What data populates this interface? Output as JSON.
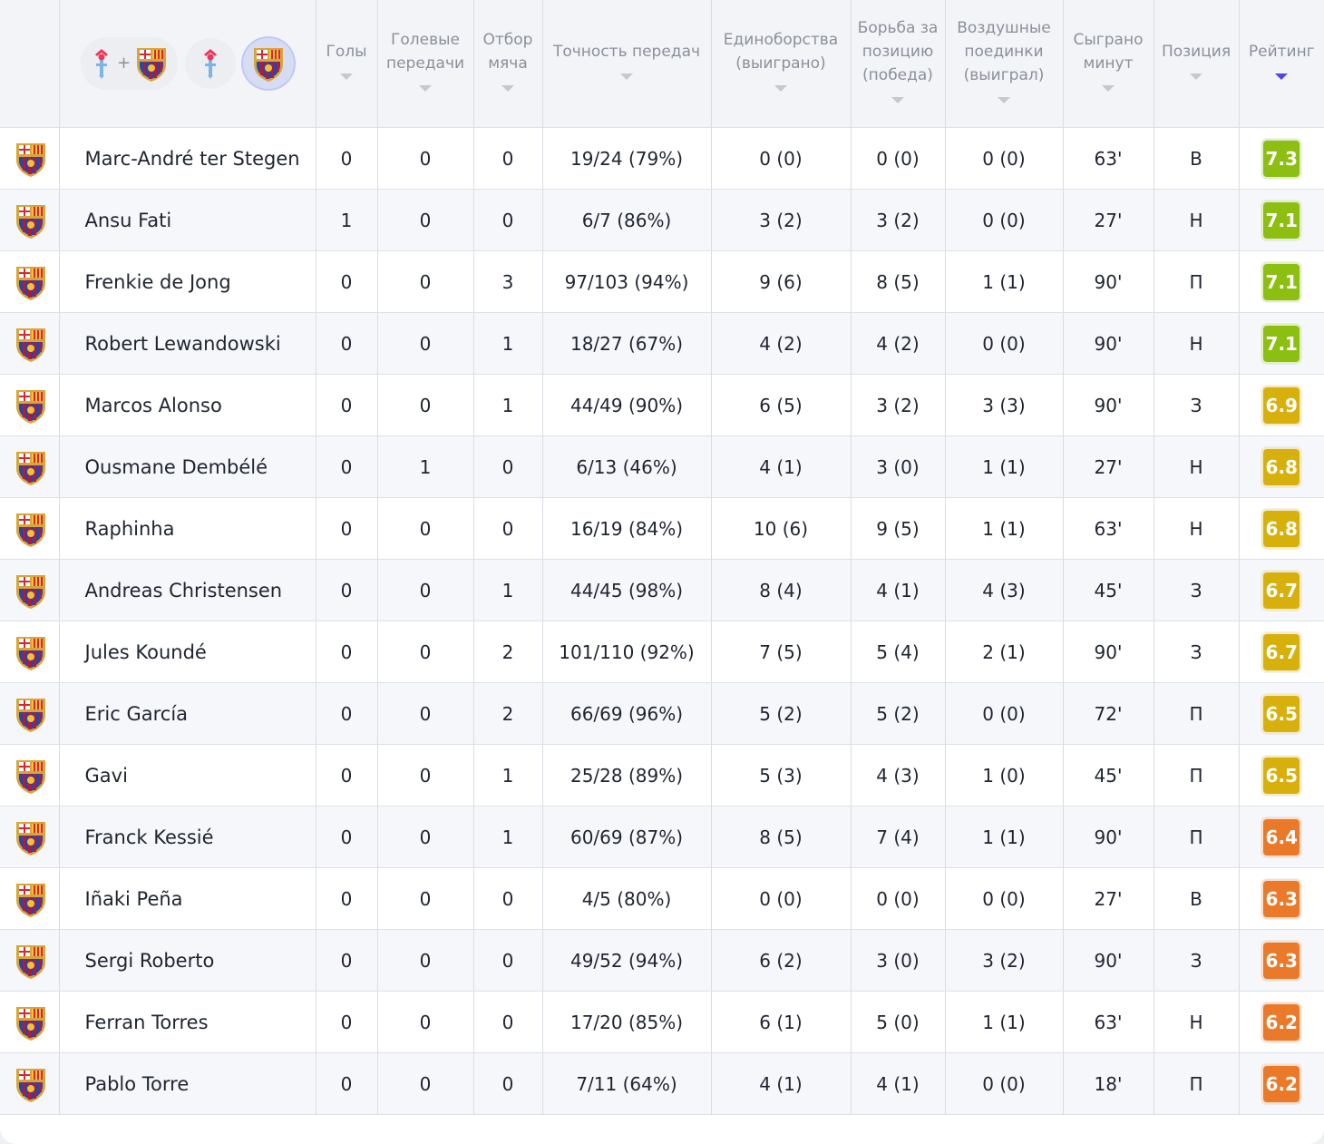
{
  "colors": {
    "rating_green": "#8cbf12",
    "rating_yellow": "#d8b00c",
    "rating_orange": "#ea7a2a",
    "sort_active": "#4a46e8"
  },
  "header": {
    "team_filter": {
      "options": [
        "celta-vigo-crest-icon + barcelona-crest-icon",
        "celta-vigo-crest-icon",
        "barcelona-crest-icon"
      ],
      "plus": "+",
      "selected": "barcelona-crest-icon"
    },
    "columns": [
      {
        "label": "Голы"
      },
      {
        "label": "Голевые передачи"
      },
      {
        "label": "Отбор мяча"
      },
      {
        "label": "Точность передач"
      },
      {
        "label": "Единоборства (выиграно)"
      },
      {
        "label": "Борьба за позицию (победа)"
      },
      {
        "label": "Воздушные поединки (выиграл)"
      },
      {
        "label": "Сыграно минут"
      },
      {
        "label": "Позиция"
      },
      {
        "label": "Рейтинг"
      }
    ]
  },
  "players": [
    {
      "name": "Marc-André ter Stegen",
      "goals": "0",
      "assists": "0",
      "tackles": "0",
      "passes": "19/24 (79%)",
      "duels": "0 (0)",
      "ground": "0 (0)",
      "aerial": "0 (0)",
      "minutes": "63'",
      "pos": "В",
      "rating": "7.3",
      "rating_color": "#8cbf12"
    },
    {
      "name": "Ansu Fati",
      "goals": "1",
      "assists": "0",
      "tackles": "0",
      "passes": "6/7 (86%)",
      "duels": "3 (2)",
      "ground": "3 (2)",
      "aerial": "0 (0)",
      "minutes": "27'",
      "pos": "Н",
      "rating": "7.1",
      "rating_color": "#8cbf12"
    },
    {
      "name": "Frenkie de Jong",
      "goals": "0",
      "assists": "0",
      "tackles": "3",
      "passes": "97/103 (94%)",
      "duels": "9 (6)",
      "ground": "8 (5)",
      "aerial": "1 (1)",
      "minutes": "90'",
      "pos": "П",
      "rating": "7.1",
      "rating_color": "#8cbf12"
    },
    {
      "name": "Robert Lewandowski",
      "goals": "0",
      "assists": "0",
      "tackles": "1",
      "passes": "18/27 (67%)",
      "duels": "4 (2)",
      "ground": "4 (2)",
      "aerial": "0 (0)",
      "minutes": "90'",
      "pos": "Н",
      "rating": "7.1",
      "rating_color": "#8cbf12"
    },
    {
      "name": "Marcos Alonso",
      "goals": "0",
      "assists": "0",
      "tackles": "1",
      "passes": "44/49 (90%)",
      "duels": "6 (5)",
      "ground": "3 (2)",
      "aerial": "3 (3)",
      "minutes": "90'",
      "pos": "З",
      "rating": "6.9",
      "rating_color": "#d8b00c"
    },
    {
      "name": "Ousmane Dembélé",
      "goals": "0",
      "assists": "1",
      "tackles": "0",
      "passes": "6/13 (46%)",
      "duels": "4 (1)",
      "ground": "3 (0)",
      "aerial": "1 (1)",
      "minutes": "27'",
      "pos": "Н",
      "rating": "6.8",
      "rating_color": "#d8b00c"
    },
    {
      "name": "Raphinha",
      "goals": "0",
      "assists": "0",
      "tackles": "0",
      "passes": "16/19 (84%)",
      "duels": "10 (6)",
      "ground": "9 (5)",
      "aerial": "1 (1)",
      "minutes": "63'",
      "pos": "Н",
      "rating": "6.8",
      "rating_color": "#d8b00c"
    },
    {
      "name": "Andreas Christensen",
      "goals": "0",
      "assists": "0",
      "tackles": "1",
      "passes": "44/45 (98%)",
      "duels": "8 (4)",
      "ground": "4 (1)",
      "aerial": "4 (3)",
      "minutes": "45'",
      "pos": "З",
      "rating": "6.7",
      "rating_color": "#d8b00c"
    },
    {
      "name": "Jules Koundé",
      "goals": "0",
      "assists": "0",
      "tackles": "2",
      "passes": "101/110 (92%)",
      "duels": "7 (5)",
      "ground": "5 (4)",
      "aerial": "2 (1)",
      "minutes": "90'",
      "pos": "З",
      "rating": "6.7",
      "rating_color": "#d8b00c"
    },
    {
      "name": "Eric García",
      "goals": "0",
      "assists": "0",
      "tackles": "2",
      "passes": "66/69 (96%)",
      "duels": "5 (2)",
      "ground": "5 (2)",
      "aerial": "0 (0)",
      "minutes": "72'",
      "pos": "П",
      "rating": "6.5",
      "rating_color": "#d8b00c"
    },
    {
      "name": "Gavi",
      "goals": "0",
      "assists": "0",
      "tackles": "1",
      "passes": "25/28 (89%)",
      "duels": "5 (3)",
      "ground": "4 (3)",
      "aerial": "1 (0)",
      "minutes": "45'",
      "pos": "П",
      "rating": "6.5",
      "rating_color": "#d8b00c"
    },
    {
      "name": "Franck Kessié",
      "goals": "0",
      "assists": "0",
      "tackles": "1",
      "passes": "60/69 (87%)",
      "duels": "8 (5)",
      "ground": "7 (4)",
      "aerial": "1 (1)",
      "minutes": "90'",
      "pos": "П",
      "rating": "6.4",
      "rating_color": "#ea7a2a"
    },
    {
      "name": "Iñaki Peña",
      "goals": "0",
      "assists": "0",
      "tackles": "0",
      "passes": "4/5 (80%)",
      "duels": "0 (0)",
      "ground": "0 (0)",
      "aerial": "0 (0)",
      "minutes": "27'",
      "pos": "В",
      "rating": "6.3",
      "rating_color": "#ea7a2a"
    },
    {
      "name": "Sergi Roberto",
      "goals": "0",
      "assists": "0",
      "tackles": "0",
      "passes": "49/52 (94%)",
      "duels": "6 (2)",
      "ground": "3 (0)",
      "aerial": "3 (2)",
      "minutes": "90'",
      "pos": "З",
      "rating": "6.3",
      "rating_color": "#ea7a2a"
    },
    {
      "name": "Ferran Torres",
      "goals": "0",
      "assists": "0",
      "tackles": "0",
      "passes": "17/20 (85%)",
      "duels": "6 (1)",
      "ground": "5 (0)",
      "aerial": "1 (1)",
      "minutes": "63'",
      "pos": "Н",
      "rating": "6.2",
      "rating_color": "#ea7a2a"
    },
    {
      "name": "Pablo Torre",
      "goals": "0",
      "assists": "0",
      "tackles": "0",
      "passes": "7/11 (64%)",
      "duels": "4 (1)",
      "ground": "4 (1)",
      "aerial": "0 (0)",
      "minutes": "18'",
      "pos": "П",
      "rating": "6.2",
      "rating_color": "#ea7a2a"
    }
  ]
}
